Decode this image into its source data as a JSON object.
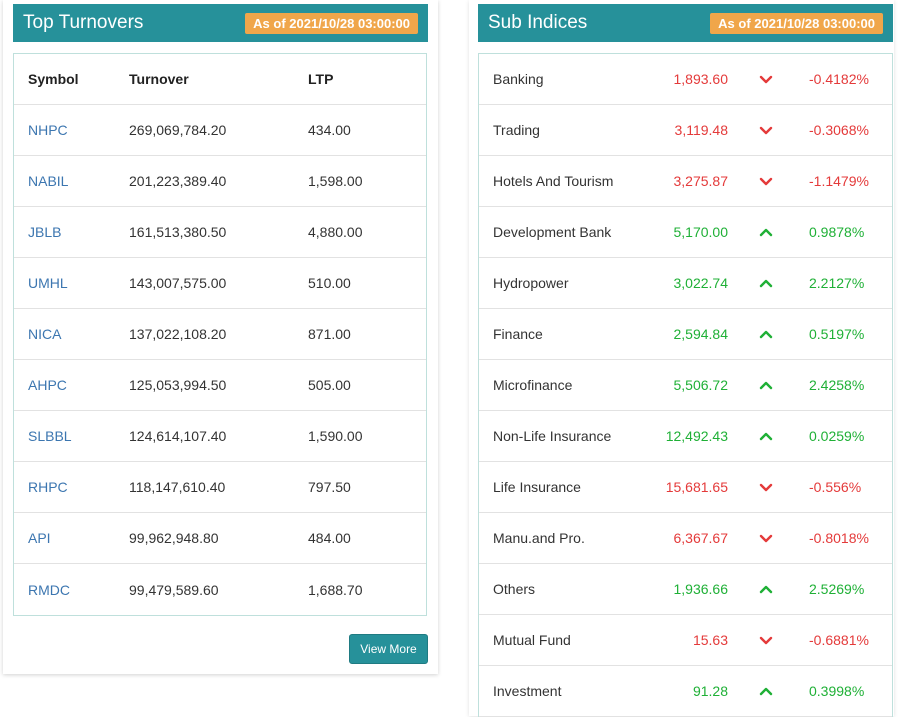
{
  "top_turnovers": {
    "title": "Top Turnovers",
    "as_of": "As of 2021/10/28 03:00:00",
    "columns": [
      "Symbol",
      "Turnover",
      "LTP"
    ],
    "rows": [
      {
        "symbol": "NHPC",
        "turnover": "269,069,784.20",
        "ltp": "434.00"
      },
      {
        "symbol": "NABIL",
        "turnover": "201,223,389.40",
        "ltp": "1,598.00"
      },
      {
        "symbol": "JBLB",
        "turnover": "161,513,380.50",
        "ltp": "4,880.00"
      },
      {
        "symbol": "UMHL",
        "turnover": "143,007,575.00",
        "ltp": "510.00"
      },
      {
        "symbol": "NICA",
        "turnover": "137,022,108.20",
        "ltp": "871.00"
      },
      {
        "symbol": "AHPC",
        "turnover": "125,053,994.50",
        "ltp": "505.00"
      },
      {
        "symbol": "SLBBL",
        "turnover": "124,614,107.40",
        "ltp": "1,590.00"
      },
      {
        "symbol": "RHPC",
        "turnover": "118,147,610.40",
        "ltp": "797.50"
      },
      {
        "symbol": "API",
        "turnover": "99,962,948.80",
        "ltp": "484.00"
      },
      {
        "symbol": "RMDC",
        "turnover": "99,479,589.60",
        "ltp": "1,688.70"
      }
    ],
    "view_more_label": "View More"
  },
  "sub_indices": {
    "title": "Sub Indices",
    "as_of": "As of 2021/10/28 03:00:00",
    "colors": {
      "up": "#1fb036",
      "down": "#e43a3a",
      "header": "#26919a",
      "badge": "#f0a64a"
    },
    "rows": [
      {
        "name": "Banking",
        "value": "1,893.60",
        "direction": "down",
        "change": "-0.4182%"
      },
      {
        "name": "Trading",
        "value": "3,119.48",
        "direction": "down",
        "change": "-0.3068%"
      },
      {
        "name": "Hotels And Tourism",
        "value": "3,275.87",
        "direction": "down",
        "change": "-1.1479%"
      },
      {
        "name": "Development Bank",
        "value": "5,170.00",
        "direction": "up",
        "change": "0.9878%"
      },
      {
        "name": "Hydropower",
        "value": "3,022.74",
        "direction": "up",
        "change": "2.2127%"
      },
      {
        "name": "Finance",
        "value": "2,594.84",
        "direction": "up",
        "change": "0.5197%"
      },
      {
        "name": "Microfinance",
        "value": "5,506.72",
        "direction": "up",
        "change": "2.4258%"
      },
      {
        "name": "Non-Life Insurance",
        "value": "12,492.43",
        "direction": "up",
        "change": "0.0259%"
      },
      {
        "name": "Life Insurance",
        "value": "15,681.65",
        "direction": "down",
        "change": "-0.556%"
      },
      {
        "name": "Manu.and Pro.",
        "value": "6,367.67",
        "direction": "down",
        "change": "-0.8018%"
      },
      {
        "name": "Others",
        "value": "1,936.66",
        "direction": "up",
        "change": "2.5269%"
      },
      {
        "name": "Mutual Fund",
        "value": "15.63",
        "direction": "down",
        "change": "-0.6881%"
      },
      {
        "name": "Investment",
        "value": "91.28",
        "direction": "up",
        "change": "0.3998%"
      }
    ]
  }
}
